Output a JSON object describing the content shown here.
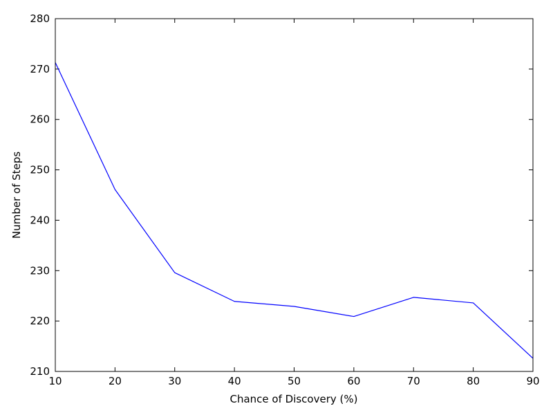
{
  "chart_data": {
    "type": "line",
    "title": "",
    "xlabel": "Chance of Discovery (%)",
    "ylabel": "Number of Steps",
    "xlim": [
      10,
      90
    ],
    "ylim": [
      210,
      280
    ],
    "xticks": [
      10,
      20,
      30,
      40,
      50,
      60,
      70,
      80,
      90
    ],
    "yticks": [
      210,
      220,
      230,
      240,
      250,
      260,
      270,
      280
    ],
    "grid": false,
    "series": [
      {
        "color": "#0000ff",
        "x": [
          10,
          20,
          30,
          40,
          50,
          60,
          70,
          80,
          90
        ],
        "y": [
          271.3,
          246.1,
          229.6,
          223.9,
          222.9,
          220.9,
          224.7,
          223.6,
          212.6
        ]
      }
    ]
  }
}
